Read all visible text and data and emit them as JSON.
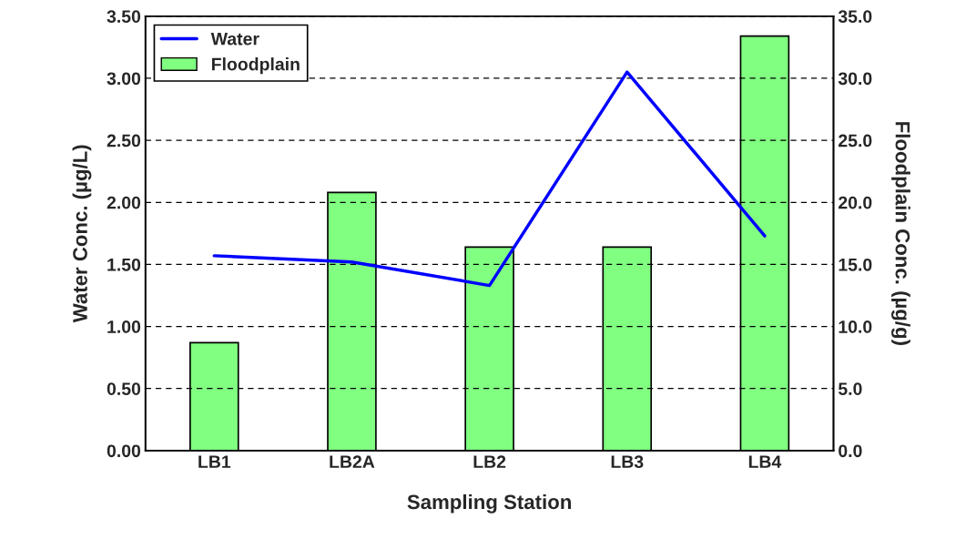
{
  "chart_data": {
    "type": "bar",
    "xlabel": "Sampling Station",
    "ylabel": "Water Conc. (µg/L)",
    "y2label": "Floodplain Conc. (µg/g)",
    "categories": [
      "LB1",
      "LB2A",
      "LB2",
      "LB3",
      "LB4"
    ],
    "series": [
      {
        "name": "Water",
        "type": "line",
        "color": "#0000ff",
        "values": [
          1.57,
          1.52,
          1.33,
          3.05,
          1.73
        ]
      },
      {
        "name": "Floodplain",
        "axis": "y2",
        "color": "#80ff80",
        "values": [
          8.7,
          20.8,
          16.4,
          16.4,
          33.4
        ]
      }
    ],
    "ylim": [
      0,
      3.5
    ],
    "yticks": [
      {
        "value": 0,
        "label": "0.00"
      },
      {
        "value": 0.5,
        "label": "0.50"
      },
      {
        "value": 1,
        "label": "1.00"
      },
      {
        "value": 1.5,
        "label": "1.50"
      },
      {
        "value": 2,
        "label": "2.00"
      },
      {
        "value": 2.5,
        "label": "2.50"
      },
      {
        "value": 3,
        "label": "3.00"
      },
      {
        "value": 3.5,
        "label": "3.50"
      }
    ],
    "y2lim": [
      0,
      35
    ],
    "y2ticks": [
      {
        "value": 0,
        "label": "0.0"
      },
      {
        "value": 5,
        "label": "5.0"
      },
      {
        "value": 10,
        "label": "10.0"
      },
      {
        "value": 15,
        "label": "15.0"
      },
      {
        "value": 20,
        "label": "20.0"
      },
      {
        "value": 25,
        "label": "25.0"
      },
      {
        "value": 30,
        "label": "30.0"
      },
      {
        "value": 35,
        "label": "35.0"
      }
    ],
    "grid": "y",
    "legend": "top left"
  }
}
